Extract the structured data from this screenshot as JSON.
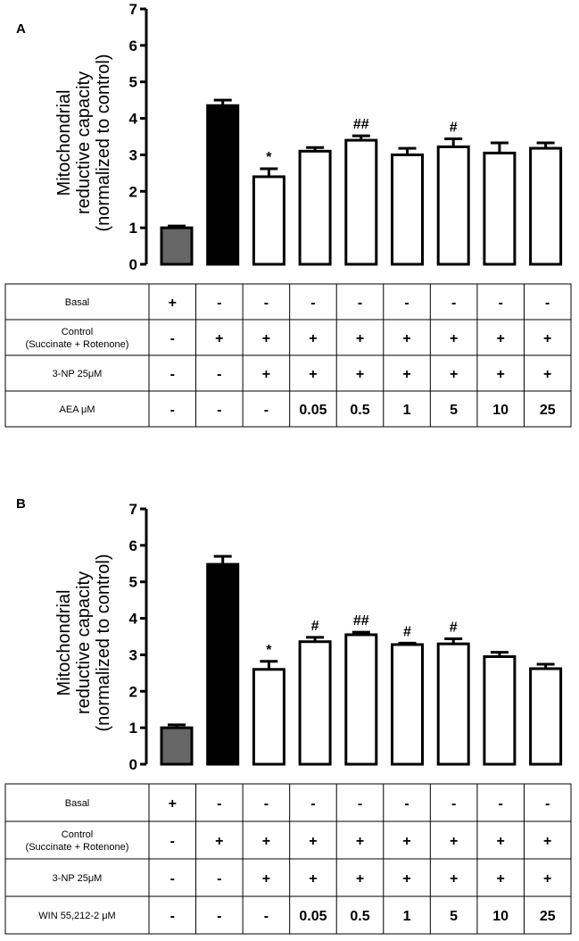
{
  "chart_data": [
    {
      "panel_label": "A",
      "type": "bar",
      "ylabel": [
        "Mitochondrial",
        "reductive capacity",
        "(normalized to control)"
      ],
      "ylim": [
        0,
        7
      ],
      "yticks": [
        0,
        1,
        2,
        3,
        4,
        5,
        6,
        7
      ],
      "values": [
        1.0,
        4.35,
        2.4,
        3.1,
        3.4,
        3.0,
        3.22,
        3.05,
        3.18
      ],
      "errors": [
        0.05,
        0.15,
        0.22,
        0.1,
        0.12,
        0.18,
        0.22,
        0.28,
        0.15
      ],
      "fills": [
        "#666666",
        "#000000",
        "#ffffff",
        "#ffffff",
        "#ffffff",
        "#ffffff",
        "#ffffff",
        "#ffffff",
        "#ffffff"
      ],
      "significance": [
        "",
        "",
        "*",
        "",
        "##",
        "",
        "#",
        "",
        ""
      ],
      "table": {
        "rows": [
          {
            "label": [
              "Basal"
            ],
            "cells": [
              "+",
              "-",
              "-",
              "-",
              "-",
              "-",
              "-",
              "-",
              "-"
            ]
          },
          {
            "label": [
              "Control",
              "(Succinate + Rotenone)"
            ],
            "cells": [
              "-",
              "+",
              "+",
              "+",
              "+",
              "+",
              "+",
              "+",
              "+"
            ]
          },
          {
            "label": [
              "3-NP 25μM"
            ],
            "cells": [
              "-",
              "-",
              "+",
              "+",
              "+",
              "+",
              "+",
              "+",
              "+"
            ]
          },
          {
            "label": [
              "AEA μM"
            ],
            "cells": [
              "-",
              "-",
              "-",
              "0.05",
              "0.5",
              "1",
              "5",
              "10",
              "25"
            ]
          }
        ]
      }
    },
    {
      "panel_label": "B",
      "type": "bar",
      "ylabel": [
        "Mitochondrial",
        "reductive capacity",
        "(normalized to control)"
      ],
      "ylim": [
        0,
        7
      ],
      "yticks": [
        0,
        1,
        2,
        3,
        4,
        5,
        6,
        7
      ],
      "values": [
        1.0,
        5.48,
        2.6,
        3.36,
        3.55,
        3.28,
        3.3,
        2.95,
        2.62
      ],
      "errors": [
        0.08,
        0.22,
        0.22,
        0.12,
        0.07,
        0.04,
        0.14,
        0.12,
        0.12
      ],
      "fills": [
        "#666666",
        "#000000",
        "#ffffff",
        "#ffffff",
        "#ffffff",
        "#ffffff",
        "#ffffff",
        "#ffffff",
        "#ffffff"
      ],
      "significance": [
        "",
        "",
        "*",
        "#",
        "##",
        "#",
        "#",
        "",
        ""
      ],
      "table": {
        "rows": [
          {
            "label": [
              "Basal"
            ],
            "cells": [
              "+",
              "-",
              "-",
              "-",
              "-",
              "-",
              "-",
              "-",
              "-"
            ]
          },
          {
            "label": [
              "Control",
              "(Succinate + Rotenone)"
            ],
            "cells": [
              "-",
              "+",
              "+",
              "+",
              "+",
              "+",
              "+",
              "+",
              "+"
            ]
          },
          {
            "label": [
              "3-NP 25μM"
            ],
            "cells": [
              "-",
              "-",
              "+",
              "+",
              "+",
              "+",
              "+",
              "+",
              "+"
            ]
          },
          {
            "label": [
              "WIN 55,212-2 μM"
            ],
            "cells": [
              "-",
              "-",
              "-",
              "0.05",
              "0.5",
              "1",
              "5",
              "10",
              "25"
            ]
          }
        ]
      }
    }
  ]
}
